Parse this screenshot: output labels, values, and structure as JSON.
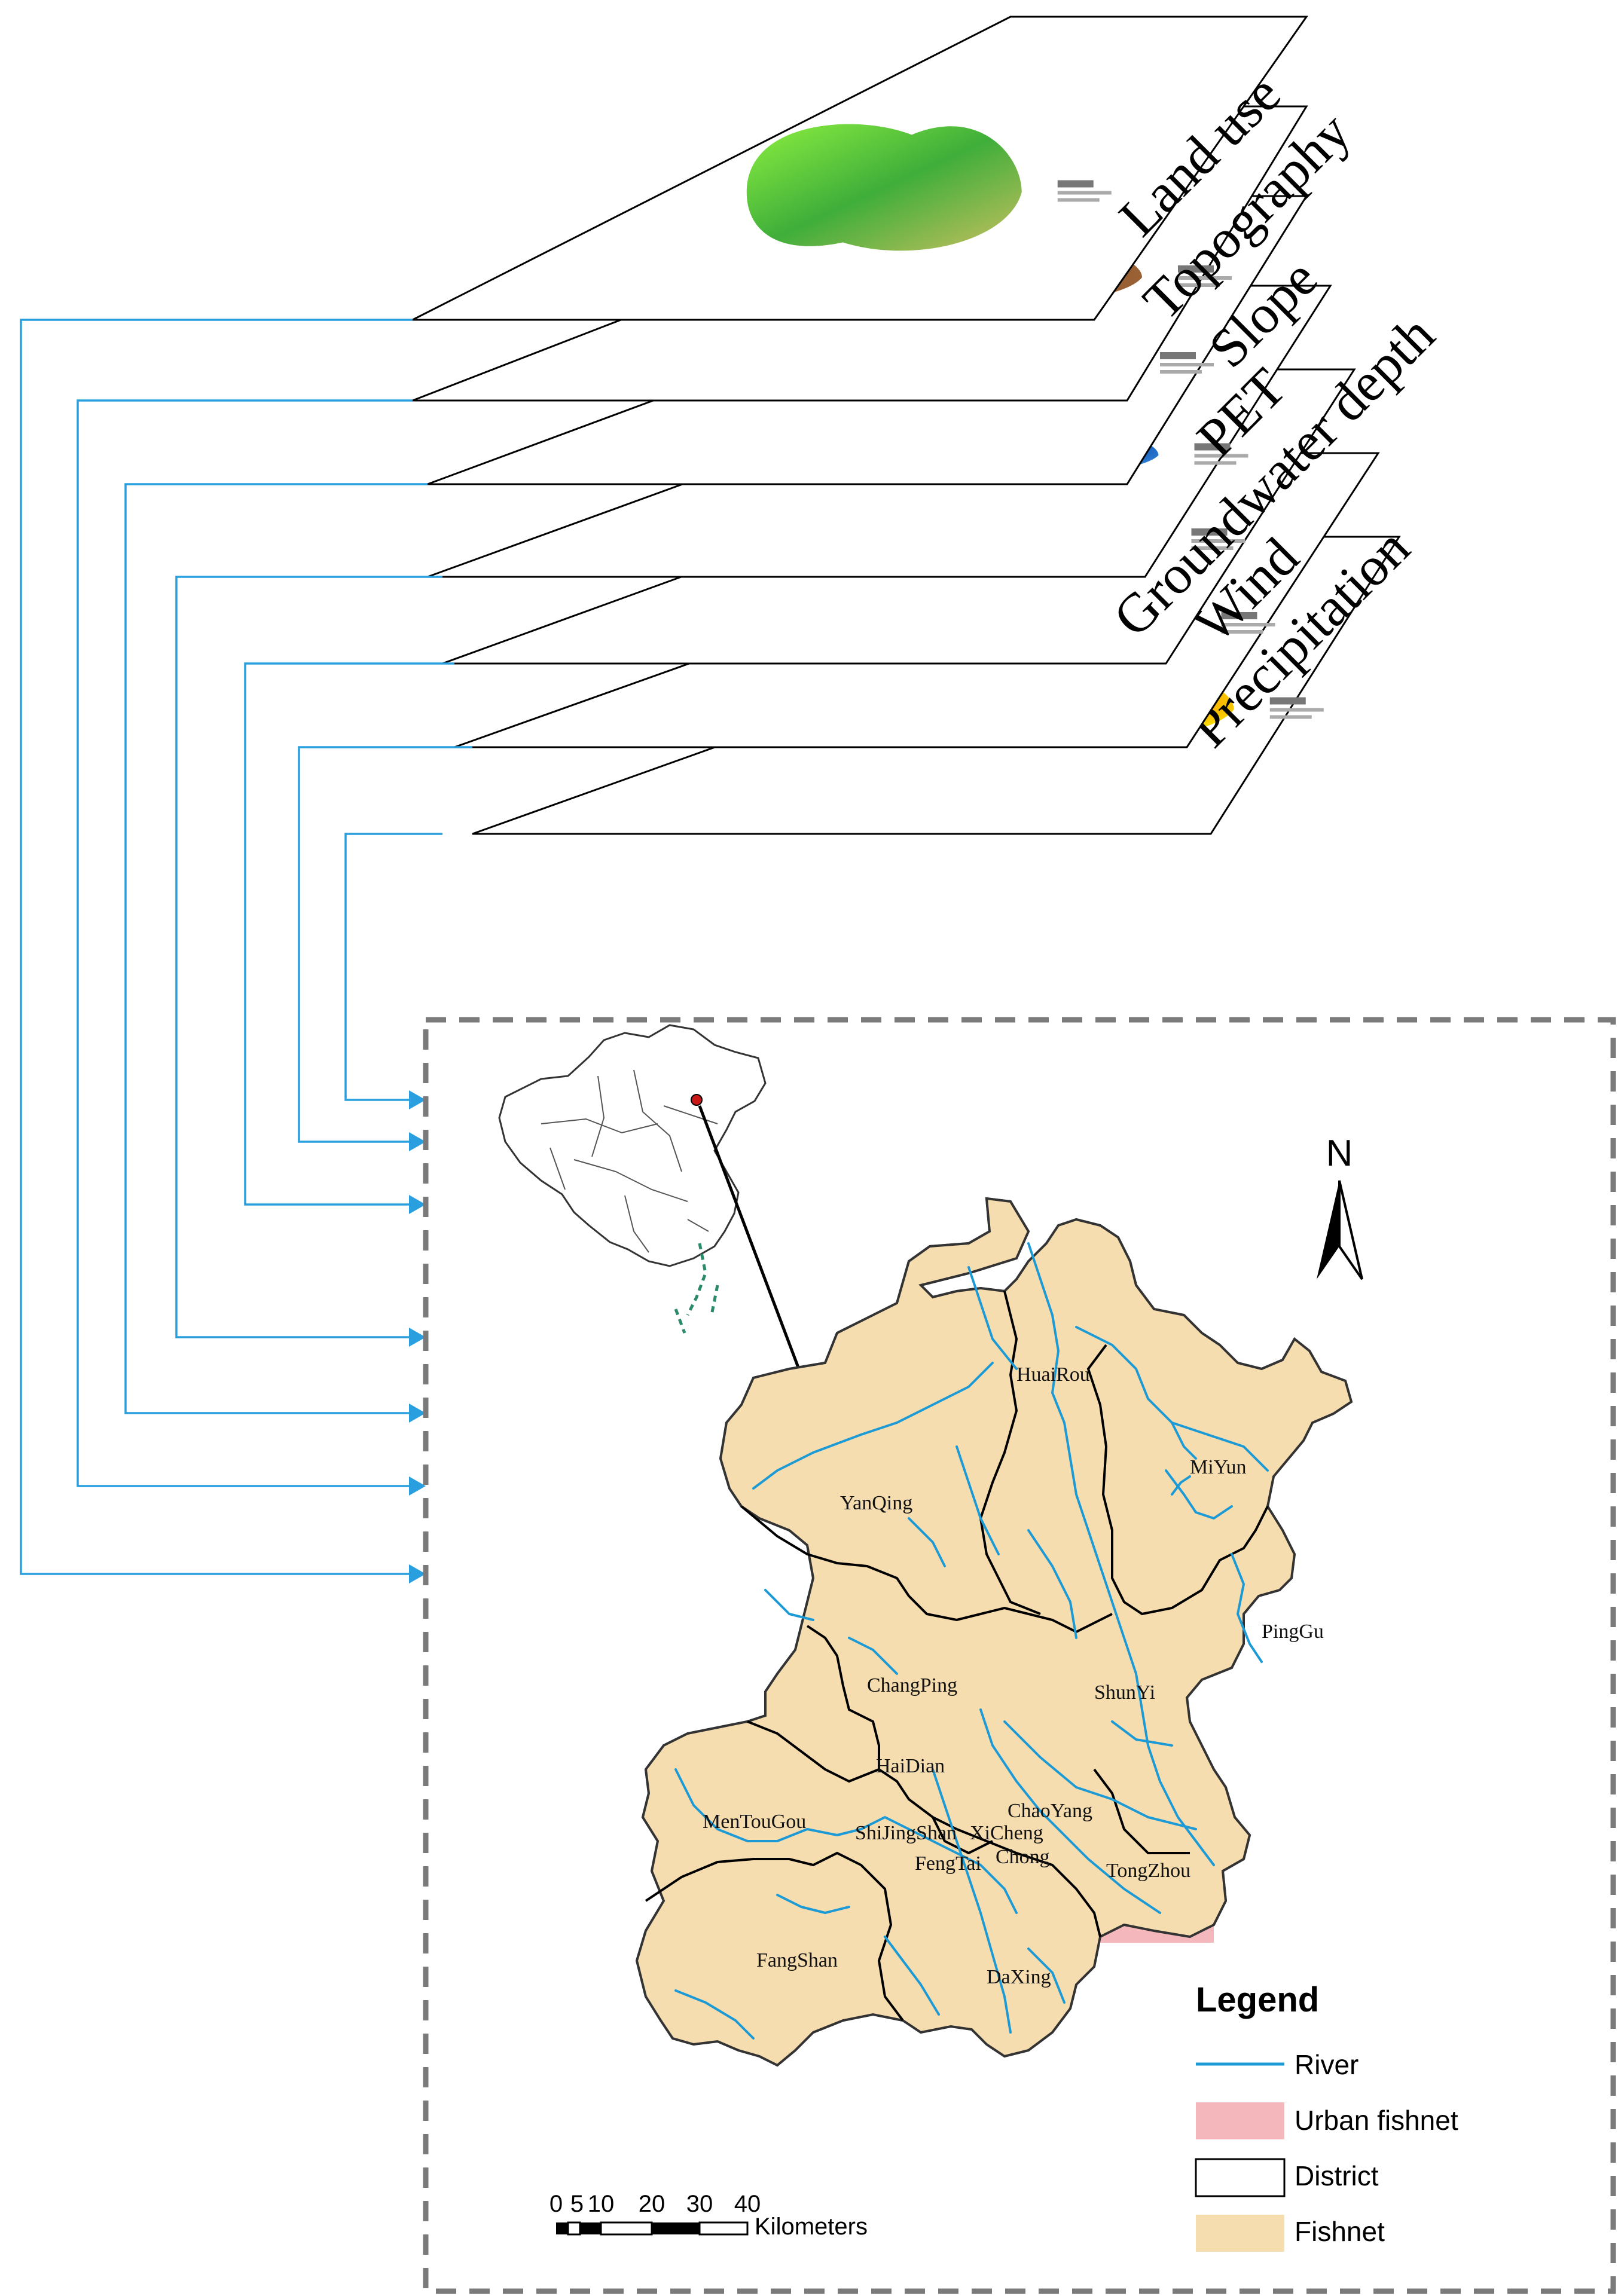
{
  "layers": [
    {
      "id": "land_use",
      "label": "Land use"
    },
    {
      "id": "topography",
      "label": "Topography"
    },
    {
      "id": "slope",
      "label": "Slope"
    },
    {
      "id": "pet",
      "label": "PET"
    },
    {
      "id": "groundwater",
      "label": "Groundwater depth"
    },
    {
      "id": "wind",
      "label": "Wind"
    },
    {
      "id": "precipitation",
      "label": "Precipitation"
    }
  ],
  "map": {
    "north_label": "N",
    "districts": [
      "HuaiRou",
      "MiYun",
      "YanQing",
      "PingGu",
      "ChangPing",
      "ShunYi",
      "HaiDian",
      "MenTouGou",
      "ChaoYang",
      "ShiJingShan",
      "XiCheng",
      "Chong",
      "FengTai",
      "TongZhou",
      "FangShan",
      "DaXing"
    ]
  },
  "legend": {
    "title": "Legend",
    "items": [
      {
        "label": "River",
        "symbol": "line",
        "color": "#1c9ad6"
      },
      {
        "label": "Urban fishnet",
        "symbol": "fill",
        "color": "#f4b8bc"
      },
      {
        "label": "District",
        "symbol": "outline",
        "color": "#000000"
      },
      {
        "label": "Fishnet",
        "symbol": "fill",
        "color": "#f6ddb0"
      }
    ]
  },
  "scale_bar": {
    "ticks": [
      "0",
      "5",
      "10",
      "20",
      "30",
      "40"
    ],
    "unit": "Kilometers"
  },
  "colors": {
    "connector": "#2a9fe0",
    "fishnet": "#f6ddb0",
    "urban": "#f4b8bc",
    "river": "#1c9ad6",
    "frame": "#7a7a7a"
  }
}
